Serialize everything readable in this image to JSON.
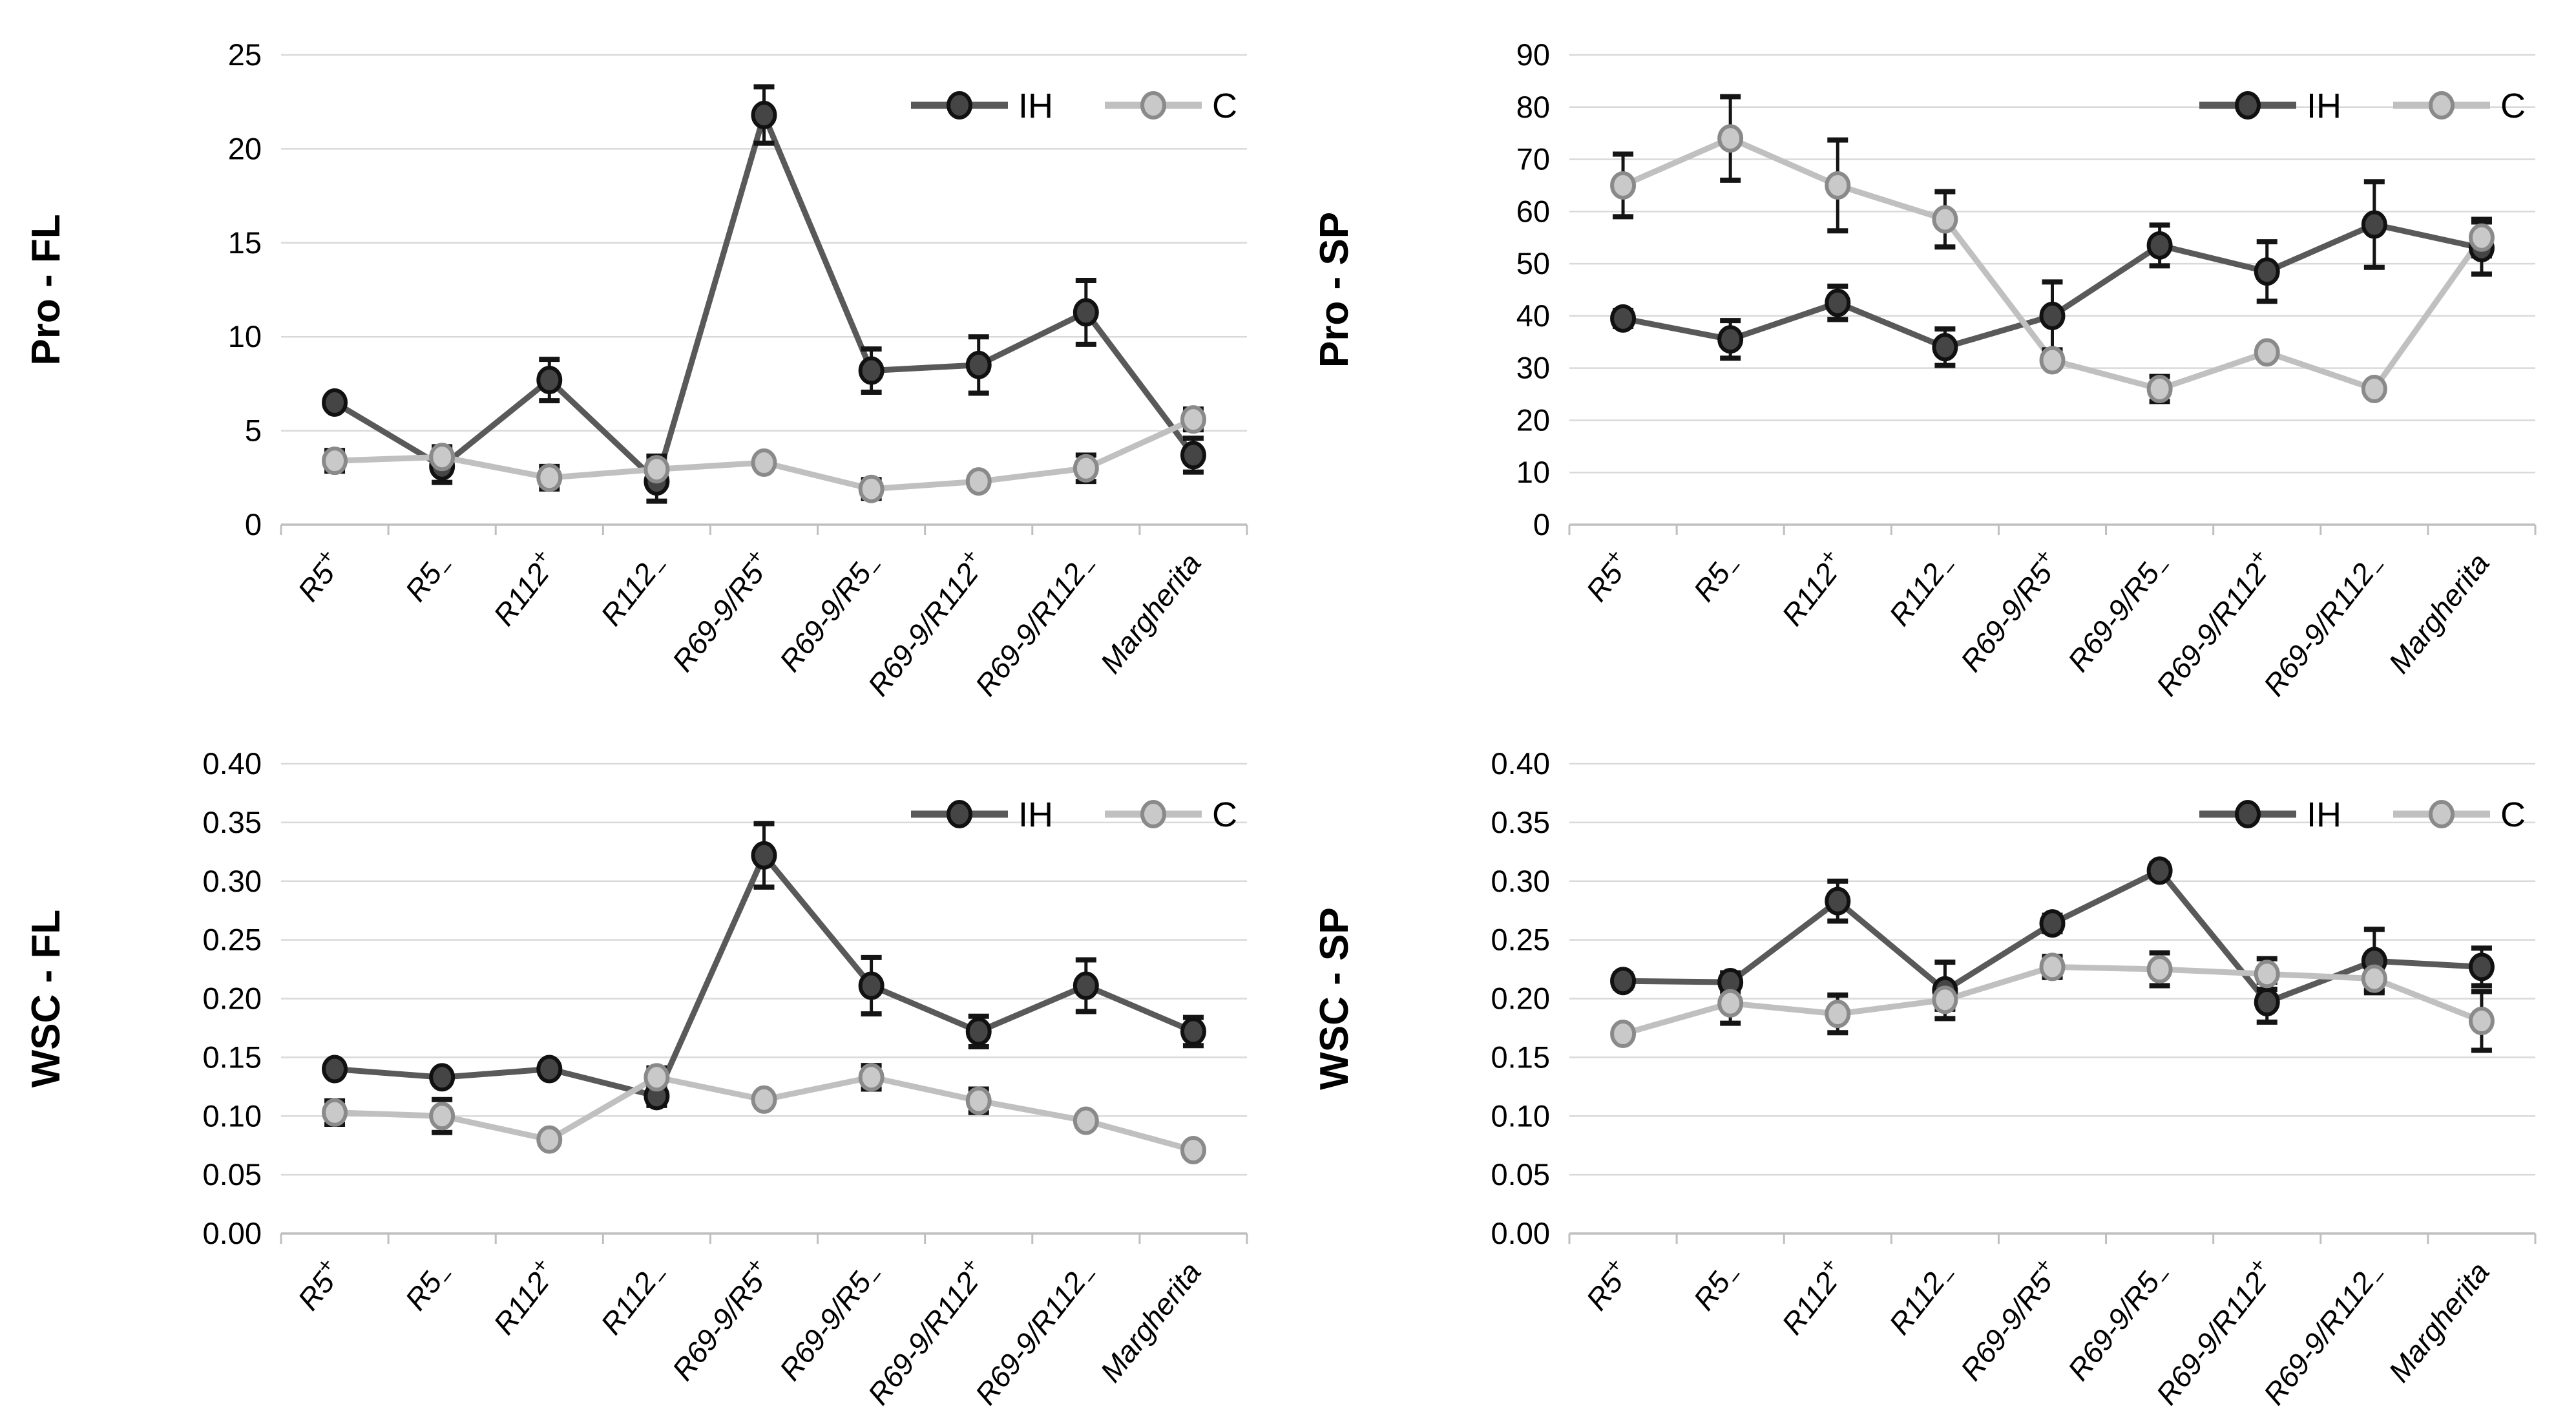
{
  "figure": {
    "background": "#ffffff",
    "layout": "2x2-grid-of-line-charts"
  },
  "colors": {
    "grid": "#d9d9d9",
    "axis": "#bfbfbf",
    "error": "#141414",
    "text": "#000000",
    "ih": {
      "line": "#595959",
      "fill": "#454545",
      "stroke": "#111111"
    },
    "c": {
      "line": "#c0c0c0",
      "fill": "#c9c9c9",
      "stroke": "#8a8a8a"
    }
  },
  "legend": {
    "items": [
      "IH",
      "C"
    ],
    "position": "top-right"
  },
  "chart_data": [
    {
      "id": "pro-fl",
      "type": "line",
      "title": "",
      "xlabel": "",
      "ylabel": "Pro - FL",
      "ylim": [
        0,
        25
      ],
      "ytick": 5,
      "ydecimals": 0,
      "grid": true,
      "legend_position": "top-right",
      "categories": [
        "R5+",
        "R5−",
        "R112+",
        "R112−",
        "R69-9/R5+",
        "R69-9/R5−",
        "R69-9/R112+",
        "R69-9/R112−",
        "Margherita"
      ],
      "series": [
        {
          "name": "IH",
          "color": "ih",
          "values": [
            6.5,
            3.1,
            7.7,
            2.3,
            21.8,
            8.2,
            8.5,
            11.3,
            3.7
          ],
          "errors": [
            0.2,
            0.85,
            1.1,
            1.05,
            1.5,
            1.15,
            1.5,
            1.7,
            0.9
          ]
        },
        {
          "name": "C",
          "color": "c",
          "values": [
            3.4,
            3.6,
            2.5,
            2.95,
            3.3,
            1.9,
            2.3,
            3.0,
            5.6
          ],
          "errors": [
            0.55,
            0.55,
            0.6,
            0.7,
            0.25,
            0.5,
            0.2,
            0.7,
            0.55
          ]
        }
      ]
    },
    {
      "id": "pro-sp",
      "type": "line",
      "title": "",
      "xlabel": "",
      "ylabel": "Pro - SP",
      "ylim": [
        0,
        90
      ],
      "ytick": 10,
      "ydecimals": 0,
      "grid": true,
      "legend_position": "top-right",
      "categories": [
        "R5+",
        "R5−",
        "R112+",
        "R112−",
        "R69-9/R5+",
        "R69-9/R5−",
        "R69-9/R112+",
        "R69-9/R112−",
        "Margherita"
      ],
      "series": [
        {
          "name": "IH",
          "color": "ih",
          "values": [
            39.5,
            35.5,
            42.5,
            34,
            40,
            53.5,
            48.5,
            57.5,
            53
          ],
          "errors": [
            1.5,
            3.6,
            3.2,
            3.5,
            6.5,
            3.9,
            5.7,
            8.2,
            5
          ]
        },
        {
          "name": "C",
          "color": "c",
          "values": [
            65,
            74,
            65,
            58.5,
            31.5,
            26,
            33,
            26,
            55
          ],
          "errors": [
            6,
            8,
            8.7,
            5.3,
            0.8,
            2.4,
            0.8,
            0.8,
            3.5
          ]
        }
      ]
    },
    {
      "id": "wsc-fl",
      "type": "line",
      "title": "",
      "xlabel": "",
      "ylabel": "WSC - FL",
      "ylim": [
        0,
        0.4
      ],
      "ytick": 0.05,
      "ydecimals": 2,
      "grid": true,
      "legend_position": "top-right",
      "categories": [
        "R5+",
        "R5−",
        "R112+",
        "R112−",
        "R69-9/R5+",
        "R69-9/R5−",
        "R69-9/R112+",
        "R69-9/R112−",
        "Margherita"
      ],
      "series": [
        {
          "name": "IH",
          "color": "ih",
          "values": [
            0.14,
            0.133,
            0.14,
            0.117,
            0.322,
            0.211,
            0.172,
            0.211,
            0.172
          ],
          "errors": [
            0.005,
            0.004,
            0.005,
            0.008,
            0.027,
            0.024,
            0.013,
            0.022,
            0.012
          ]
        },
        {
          "name": "C",
          "color": "c",
          "values": [
            0.103,
            0.1,
            0.08,
            0.133,
            0.114,
            0.133,
            0.113,
            0.096,
            0.071
          ],
          "errors": [
            0.01,
            0.014,
            0.004,
            0.008,
            0.004,
            0.01,
            0.01,
            0.004,
            0.003
          ]
        }
      ]
    },
    {
      "id": "wsc-sp",
      "type": "line",
      "title": "",
      "xlabel": "",
      "ylabel": "WSC - SP",
      "ylim": [
        0,
        0.4
      ],
      "ytick": 0.05,
      "ydecimals": 2,
      "grid": true,
      "legend_position": "top-right",
      "categories": [
        "R5+",
        "R5−",
        "R112+",
        "R112−",
        "R69-9/R5+",
        "R69-9/R5−",
        "R69-9/R112+",
        "R69-9/R112−",
        "Margherita"
      ],
      "series": [
        {
          "name": "IH",
          "color": "ih",
          "values": [
            0.215,
            0.214,
            0.283,
            0.207,
            0.264,
            0.309,
            0.197,
            0.232,
            0.227
          ],
          "errors": [
            0.006,
            0.008,
            0.017,
            0.024,
            0.007,
            0.006,
            0.017,
            0.027,
            0.016
          ]
        },
        {
          "name": "C",
          "color": "c",
          "values": [
            0.17,
            0.196,
            0.187,
            0.199,
            0.227,
            0.225,
            0.221,
            0.217,
            0.181
          ],
          "errors": [
            0.004,
            0.017,
            0.016,
            0.008,
            0.009,
            0.014,
            0.013,
            0.01,
            0.025
          ]
        }
      ]
    }
  ]
}
